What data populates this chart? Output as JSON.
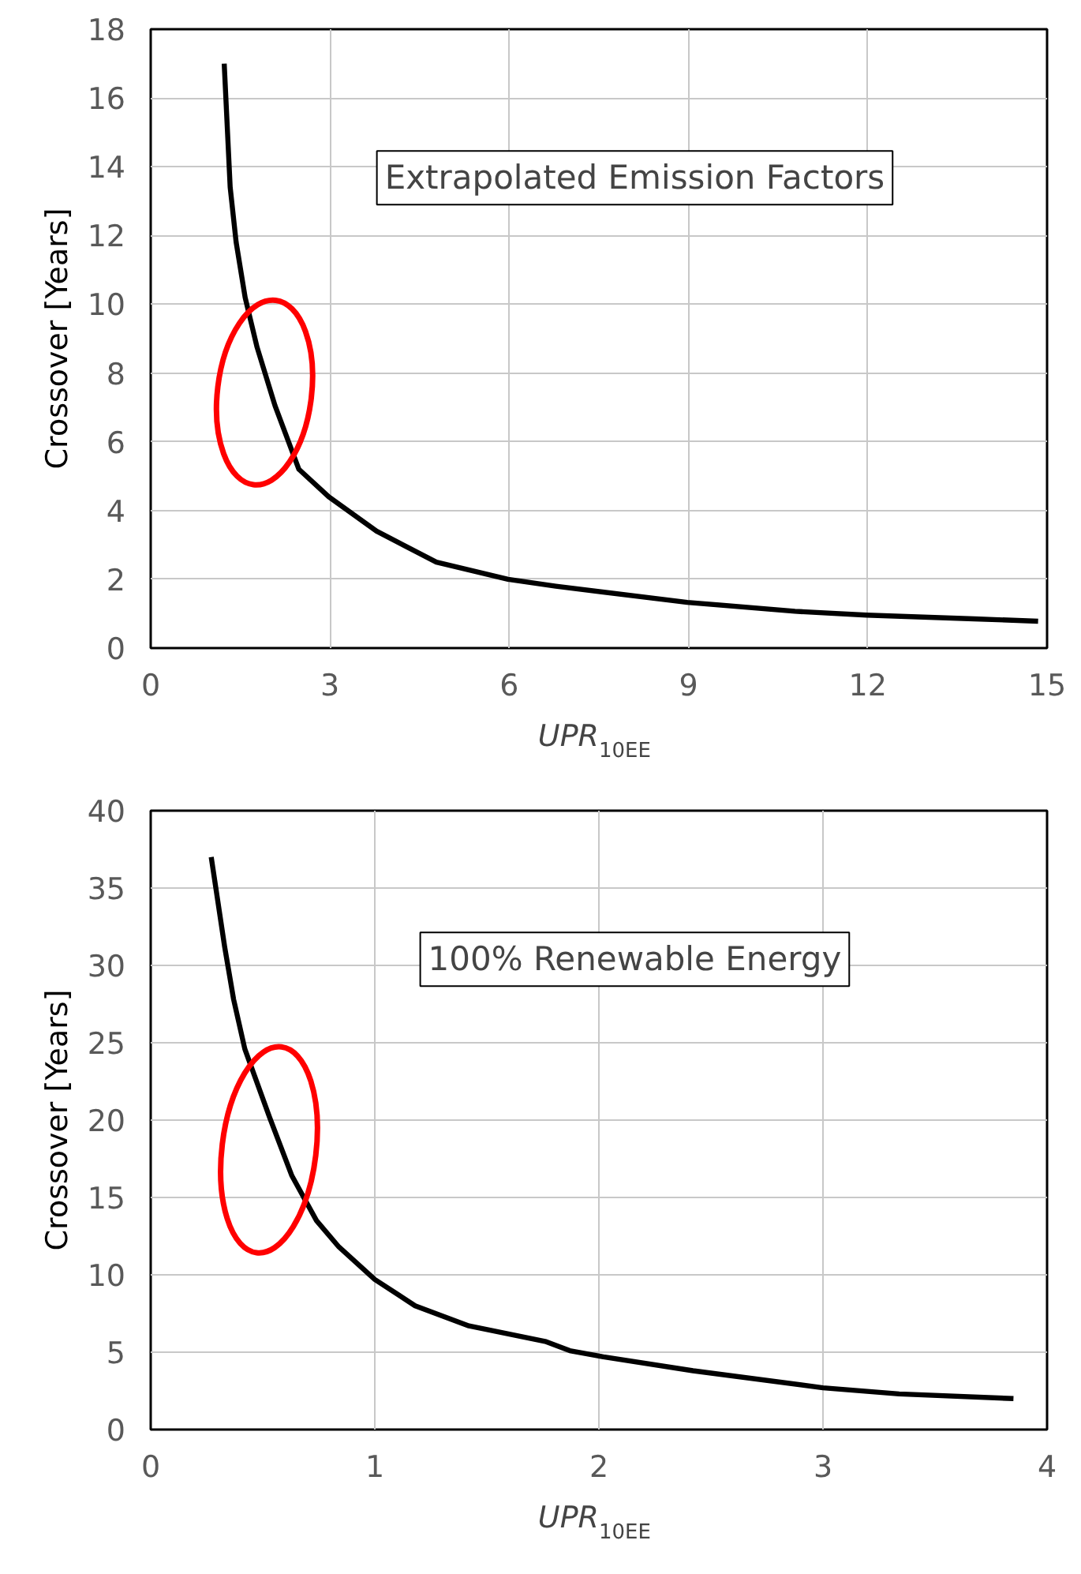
{
  "chart_data": [
    {
      "type": "line",
      "xlabel": "UPR$_{10EE}$",
      "ylabel": "Crossover [Years]",
      "annotations": [
        "Extrapolated Emission Factors"
      ],
      "series": [
        {
          "color": "#000000",
          "x": [
            1.23,
            1.33,
            1.43,
            1.58,
            1.78,
            2.08,
            2.48,
            2.98,
            3.78,
            4.78,
            5.98,
            6.78,
            8.98,
            10.78,
            11.98,
            13.78,
            14.85
          ],
          "values": [
            17.0,
            13.4,
            11.8,
            10.2,
            8.75,
            7.05,
            5.2,
            4.4,
            3.4,
            2.5,
            2.0,
            1.8,
            1.33,
            1.07,
            0.96,
            0.85,
            0.78
          ]
        }
      ],
      "xlim": [
        0,
        15
      ],
      "xticks": [
        0,
        3,
        6,
        9,
        12,
        15
      ],
      "ylim": [
        0,
        18
      ],
      "yticks": [
        0,
        2,
        4,
        6,
        8,
        10,
        12,
        14,
        16,
        18
      ],
      "grid": true,
      "marker": "none",
      "line_style": "solid"
    },
    {
      "type": "line",
      "xlabel": "UPR$_{10EE}$",
      "ylabel": "Crossover [Years]",
      "annotations": [
        "100% Renewable Energy"
      ],
      "series": [
        {
          "color": "#000000",
          "x": [
            0.27,
            0.33,
            0.37,
            0.42,
            0.53,
            0.63,
            0.74,
            0.84,
            1.0,
            1.18,
            1.42,
            1.76,
            1.87,
            2.02,
            2.42,
            3.0,
            3.34,
            3.85
          ],
          "values": [
            37.0,
            31.2,
            27.8,
            24.6,
            20.2,
            16.4,
            13.5,
            11.8,
            9.7,
            8.0,
            6.7,
            5.7,
            5.1,
            4.7,
            3.8,
            2.7,
            2.3,
            2.0
          ]
        }
      ],
      "xlim": [
        0,
        4
      ],
      "xticks": [
        0,
        1,
        2,
        3,
        4
      ],
      "ylim": [
        0,
        40
      ],
      "yticks": [
        0,
        5,
        10,
        15,
        20,
        25,
        30,
        35,
        40
      ],
      "grid": true,
      "marker": "none",
      "line_style": "solid"
    }
  ]
}
